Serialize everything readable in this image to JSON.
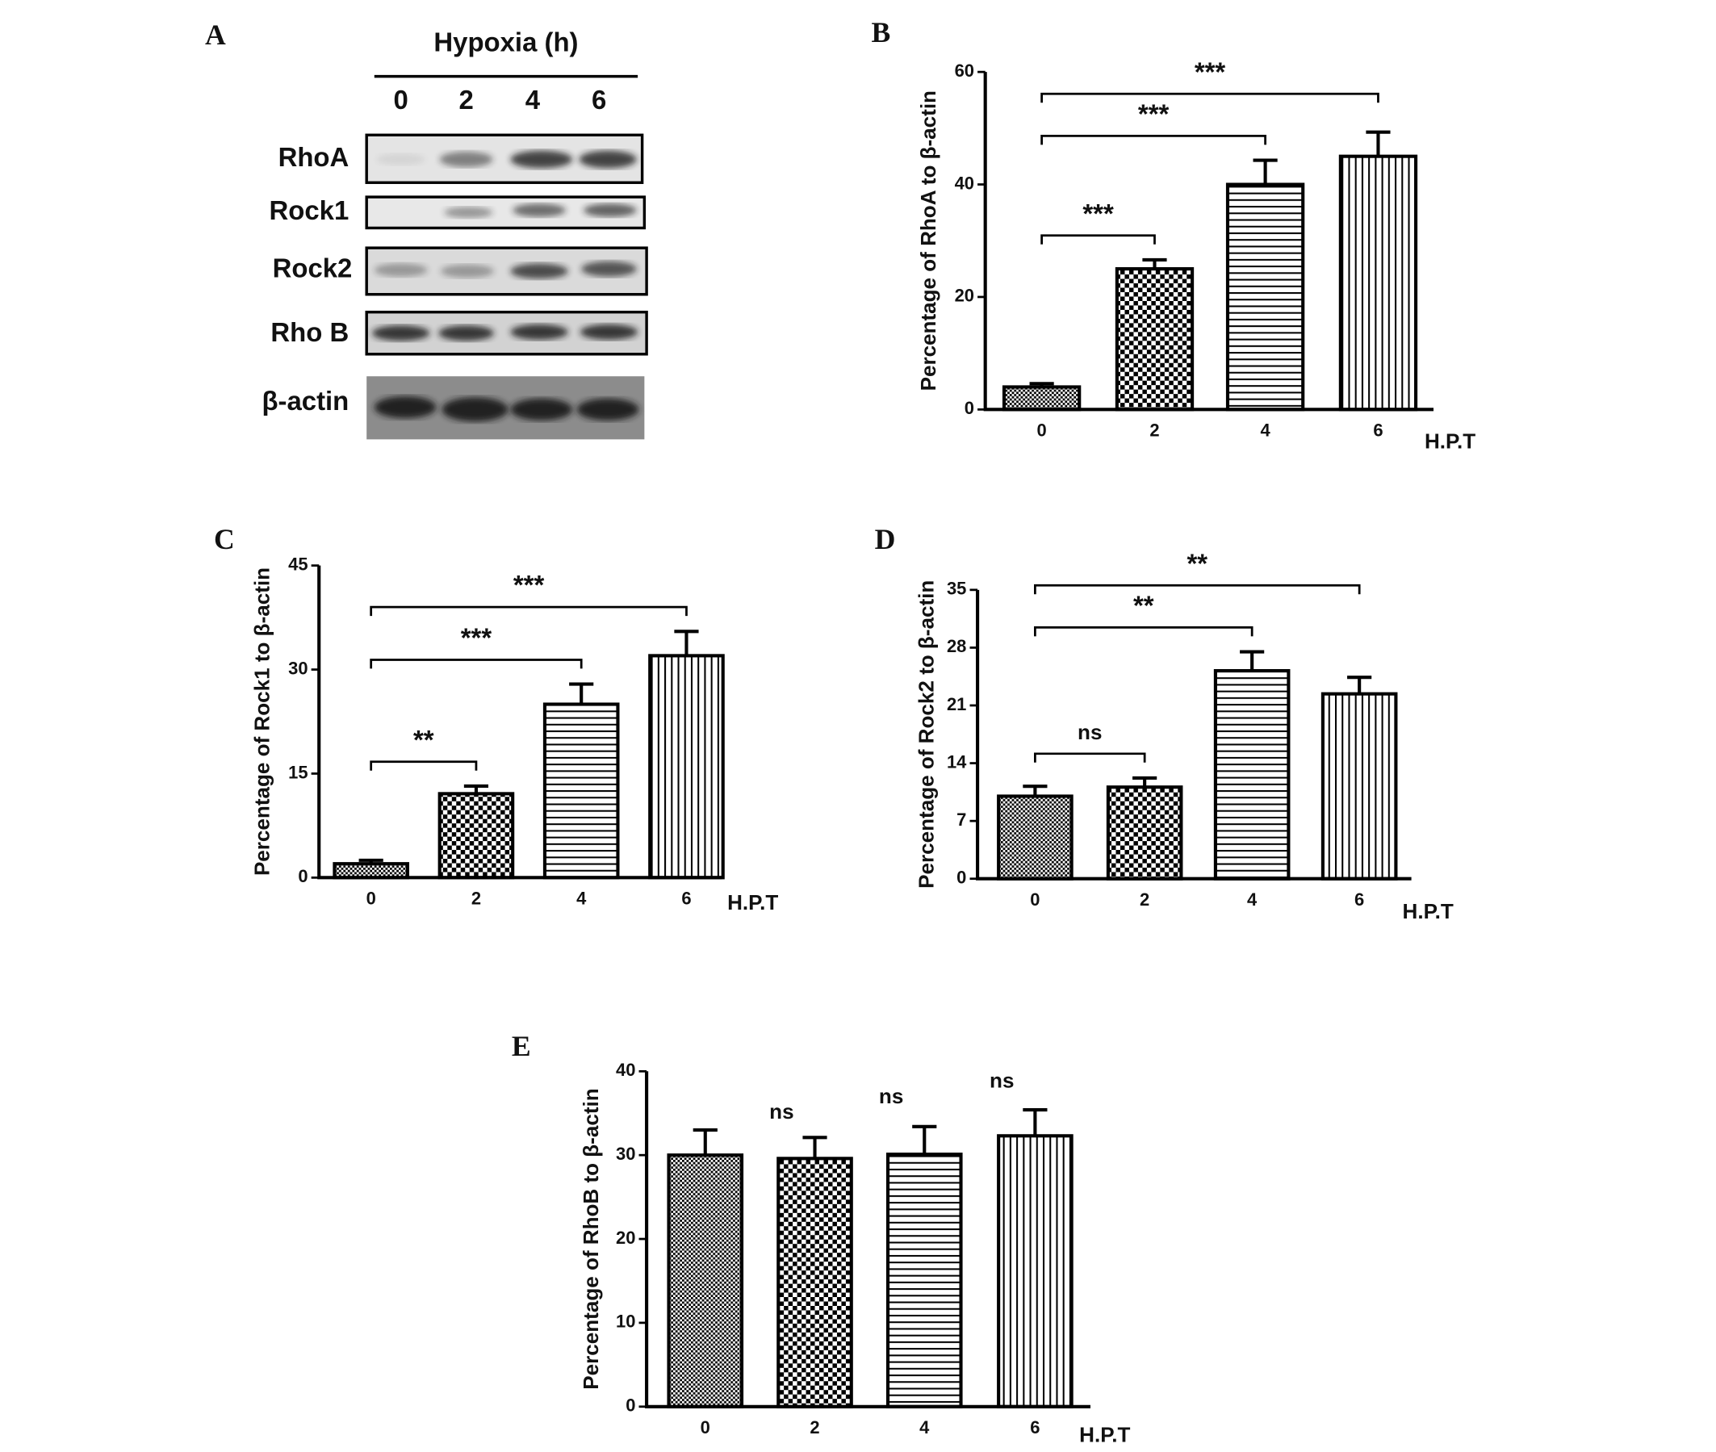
{
  "blot": {
    "panel": "A",
    "title": "Hypoxia (h)",
    "lanes": [
      "0",
      "2",
      "4",
      "6"
    ],
    "rows": [
      "RhoA",
      "Rock1",
      "Rock2",
      "Rho B",
      "β-actin"
    ]
  },
  "chart_data": [
    {
      "type": "bar",
      "panel": "B",
      "ylabel": "Percentage of RhoA to β-actin",
      "xlabel": "H.P.T",
      "categories": [
        "0",
        "2",
        "4",
        "6"
      ],
      "values": [
        4,
        25,
        40,
        45
      ],
      "errors": [
        0.6,
        1.6,
        4.3,
        4.3
      ],
      "patterns": [
        "fine-check",
        "check",
        "horizontal",
        "vertical"
      ],
      "ylim": [
        0,
        60
      ],
      "yticks": [
        0,
        20,
        40,
        60
      ],
      "annotations": [
        {
          "from": "0",
          "to": "2",
          "label": "***"
        },
        {
          "from": "0",
          "to": "4",
          "label": "***"
        },
        {
          "from": "0",
          "to": "6",
          "label": "***"
        }
      ]
    },
    {
      "type": "bar",
      "panel": "C",
      "ylabel": "Percentage of Rock1 to β-actin",
      "xlabel": "H.P.T",
      "categories": [
        "0",
        "2",
        "4",
        "6"
      ],
      "values": [
        2,
        12.1,
        25,
        32
      ],
      "errors": [
        0.5,
        1.1,
        2.9,
        3.5
      ],
      "patterns": [
        "fine-check",
        "check",
        "horizontal",
        "vertical"
      ],
      "ylim": [
        0,
        45
      ],
      "yticks": [
        0,
        15,
        30,
        45
      ],
      "annotations": [
        {
          "from": "0",
          "to": "2",
          "label": "**"
        },
        {
          "from": "0",
          "to": "4",
          "label": "***"
        },
        {
          "from": "0",
          "to": "6",
          "label": "***"
        }
      ]
    },
    {
      "type": "bar",
      "panel": "D",
      "ylabel": "Percentage of Rock2 to β-actin",
      "xlabel": "H.P.T",
      "categories": [
        "0",
        "2",
        "4",
        "6"
      ],
      "values": [
        10,
        11.1,
        25.2,
        22.4
      ],
      "errors": [
        1.2,
        1.1,
        2.3,
        2
      ],
      "patterns": [
        "fine-check",
        "check",
        "horizontal",
        "vertical"
      ],
      "ylim": [
        0,
        35
      ],
      "yticks": [
        0,
        7,
        14,
        21,
        28,
        35
      ],
      "annotations": [
        {
          "from": "0",
          "to": "2",
          "label": "ns"
        },
        {
          "from": "0",
          "to": "4",
          "label": "**"
        },
        {
          "from": "0",
          "to": "6",
          "label": "**"
        }
      ]
    },
    {
      "type": "bar",
      "panel": "E",
      "ylabel": "Percentage of RhoB to β-actin",
      "xlabel": "H.P.T",
      "categories": [
        "0",
        "2",
        "4",
        "6"
      ],
      "values": [
        30,
        29.6,
        30.1,
        32.3
      ],
      "errors": [
        3,
        2.5,
        3.3,
        3.1
      ],
      "patterns": [
        "fine-check",
        "check",
        "horizontal",
        "vertical"
      ],
      "ylim": [
        0,
        40
      ],
      "yticks": [
        0,
        10,
        20,
        30,
        40
      ],
      "annotations": [
        {
          "category": "2",
          "label": "ns"
        },
        {
          "category": "4",
          "label": "ns"
        },
        {
          "category": "6",
          "label": "ns"
        }
      ]
    }
  ]
}
